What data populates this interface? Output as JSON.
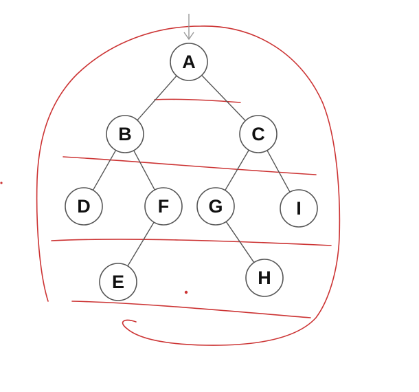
{
  "tree": {
    "nodes": [
      {
        "id": "A",
        "label": "A"
      },
      {
        "id": "B",
        "label": "B"
      },
      {
        "id": "C",
        "label": "C"
      },
      {
        "id": "D",
        "label": "D"
      },
      {
        "id": "F",
        "label": "F"
      },
      {
        "id": "G",
        "label": "G"
      },
      {
        "id": "I",
        "label": "I"
      },
      {
        "id": "E",
        "label": "E"
      },
      {
        "id": "H",
        "label": "H"
      }
    ],
    "edges": [
      [
        "A",
        "B"
      ],
      [
        "A",
        "C"
      ],
      [
        "B",
        "D"
      ],
      [
        "B",
        "F"
      ],
      [
        "C",
        "G"
      ],
      [
        "C",
        "I"
      ],
      [
        "F",
        "E"
      ],
      [
        "G",
        "H"
      ]
    ],
    "entry_arrow_target": "A"
  },
  "annotations": {
    "ink_color": "#cc3333",
    "arrow_color": "#999999",
    "outer_loop": "hand-drawn red outline enclosing the tree",
    "level_separators": 4,
    "marks": [
      "dot",
      "dot"
    ]
  }
}
